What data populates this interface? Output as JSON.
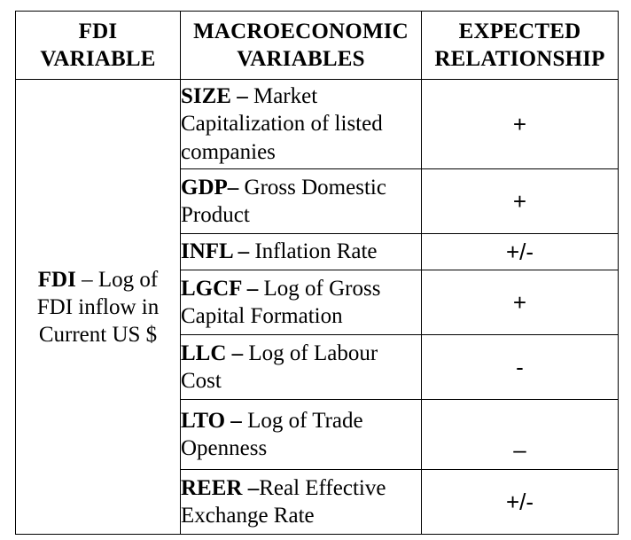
{
  "headers": {
    "col1": [
      "FDI",
      "VARIABLE"
    ],
    "col2": [
      "MACROECONOMIC",
      "VARIABLES"
    ],
    "col3": [
      "EXPECTED",
      "RELATIONSHIP"
    ]
  },
  "fdi": {
    "abbr": "FDI",
    "lines": [
      " – Log of",
      "FDI inflow in",
      "Current US $"
    ]
  },
  "rows": [
    {
      "abbr": "SIZE –",
      "lines": [
        " Market",
        "Capitalization of listed",
        "companies"
      ],
      "relationship": "+"
    },
    {
      "abbr": "GDP–",
      "lines": [
        " Gross Domestic",
        "Product"
      ],
      "relationship": "+"
    },
    {
      "abbr": "INFL –",
      "lines": [
        " Inflation Rate"
      ],
      "relationship": "+/-"
    },
    {
      "abbr": "LGCF –",
      "lines": [
        " Log of Gross",
        "Capital Formation"
      ],
      "relationship": "+"
    },
    {
      "abbr": "LLC –",
      "lines": [
        " Log of Labour",
        "Cost"
      ],
      "relationship": "-"
    },
    {
      "abbr": "LTO –",
      "lines": [
        " Log of Trade",
        "Openness"
      ],
      "relationship": "–"
    },
    {
      "abbr": "REER –",
      "lines": [
        "Real Effective",
        "Exchange Rate"
      ],
      "relationship": "+/-"
    }
  ]
}
